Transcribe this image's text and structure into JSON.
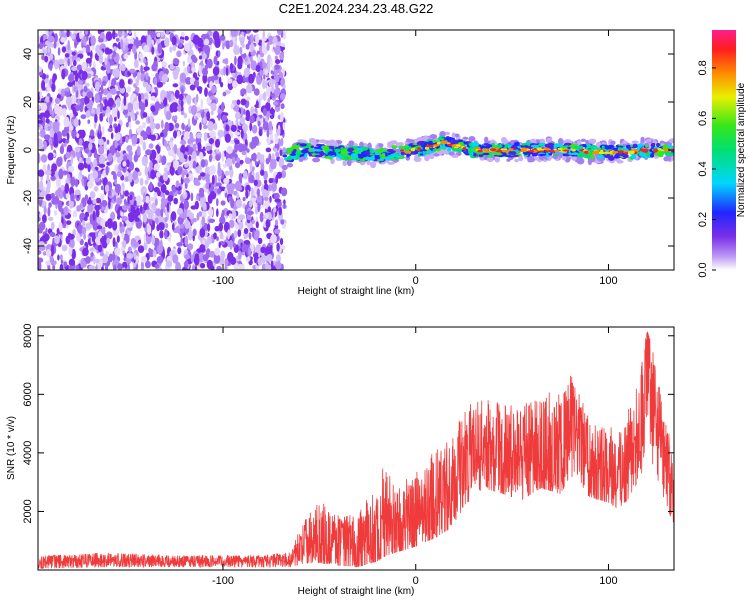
{
  "title": "C2E1.2024.234.23.48.G22",
  "colors": {
    "snr_line": "#ef3b3b",
    "spectrogram_noise": "#7a2ee8",
    "axis": "#000000"
  },
  "chart_data": [
    {
      "type": "heatmap",
      "title": "C2E1.2024.234.23.48.G22",
      "xlabel": "Height of straight line (km)",
      "ylabel": "Frequency (Hz)",
      "xlim": [
        -196,
        134
      ],
      "ylim": [
        -50,
        50
      ],
      "xticks": [
        -100,
        0,
        100
      ],
      "yticks": [
        -40,
        -20,
        0,
        20,
        40
      ],
      "colorbar": {
        "label": "Normalized spectral amplitude",
        "range": [
          0.0,
          0.95
        ],
        "ticks": [
          0.0,
          0.2,
          0.4,
          0.6,
          0.8
        ],
        "colormap": "rainbow (violet-blue-cyan-green-yellow-orange-red-magenta)"
      },
      "regions": [
        {
          "name": "noise",
          "x_range": [
            -196,
            -68
          ],
          "freq_range": [
            -50,
            50
          ],
          "amplitude": [
            0.0,
            0.15
          ]
        },
        {
          "name": "signal",
          "x_range": [
            -68,
            134
          ],
          "center_freq": [
            [
              -68,
              -3
            ],
            [
              -60,
              0
            ],
            [
              -40,
              -1
            ],
            [
              -20,
              -2
            ],
            [
              -10,
              -1
            ],
            [
              0,
              0
            ],
            [
              10,
              2
            ],
            [
              15,
              3
            ],
            [
              20,
              2
            ],
            [
              30,
              0
            ],
            [
              40,
              0
            ],
            [
              60,
              0
            ],
            [
              80,
              0
            ],
            [
              100,
              -1
            ],
            [
              110,
              -1
            ],
            [
              120,
              0
            ],
            [
              134,
              0
            ]
          ],
          "amplitude": [
            0.2,
            0.9
          ]
        }
      ]
    },
    {
      "type": "line",
      "xlabel": "Height of straight line (km)",
      "ylabel": "SNR (10 * v/v)",
      "xlim": [
        -196,
        134
      ],
      "ylim": [
        0,
        8300
      ],
      "xticks": [
        -100,
        0,
        100
      ],
      "yticks": [
        2000,
        4000,
        6000,
        8000
      ],
      "series": [
        {
          "x": [
            -196,
            -160,
            -120,
            -80,
            -65,
            -60,
            -50,
            -40,
            -30,
            -20,
            -15,
            -10,
            0,
            10,
            20,
            25,
            35,
            45,
            55,
            65,
            75,
            80,
            85,
            90,
            95,
            100,
            105,
            110,
            115,
            118,
            120,
            122,
            125,
            130,
            134
          ],
          "y": [
            250,
            350,
            300,
            300,
            400,
            700,
            1200,
            900,
            800,
            1200,
            1800,
            1500,
            1800,
            2300,
            2800,
            3800,
            4300,
            4100,
            4000,
            4300,
            4000,
            4900,
            4500,
            3800,
            3600,
            3500,
            3300,
            3800,
            4600,
            5500,
            6500,
            6200,
            5000,
            3500,
            2300
          ],
          "min": [
            50,
            100,
            100,
            100,
            100,
            200,
            250,
            150,
            100,
            300,
            500,
            600,
            800,
            1100,
            1500,
            2200,
            2800,
            2600,
            2400,
            2800,
            2600,
            3200,
            3000,
            2500,
            2400,
            2300,
            2100,
            2400,
            3000,
            3400,
            4000,
            3800,
            3200,
            2200,
            1500
          ],
          "max": [
            500,
            600,
            500,
            500,
            600,
            1500,
            2400,
            1900,
            1900,
            3000,
            4200,
            2900,
            3400,
            4100,
            4700,
            5600,
            5900,
            5800,
            5800,
            6200,
            6000,
            6800,
            6000,
            5400,
            5200,
            5000,
            4900,
            5400,
            6500,
            7400,
            8200,
            7800,
            6800,
            5200,
            3800
          ]
        }
      ]
    }
  ]
}
